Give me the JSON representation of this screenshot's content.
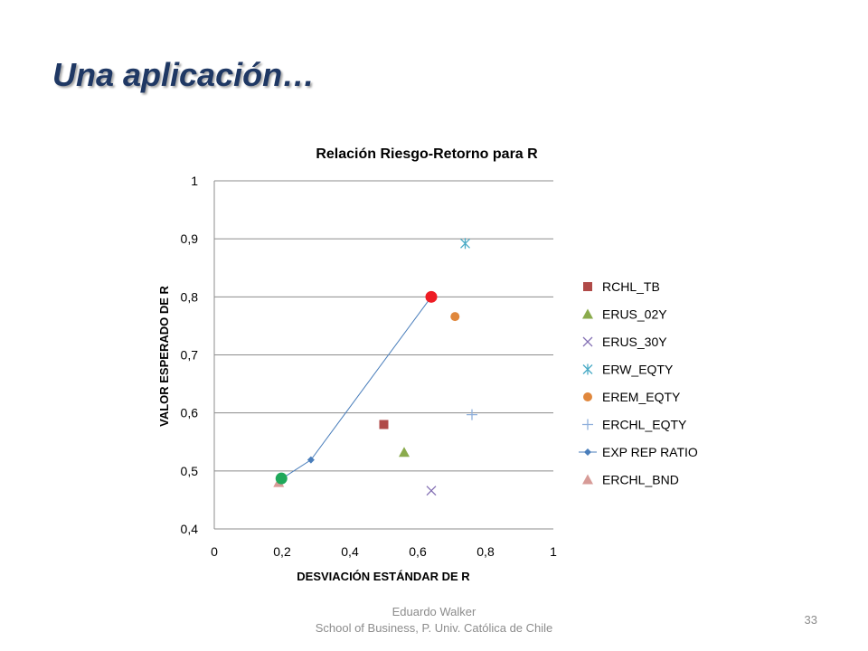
{
  "slide": {
    "title": "Una aplicación…",
    "footer_line1": "Eduardo Walker",
    "footer_line2": "School of Business, P. Univ. Católica de Chile",
    "page_number": "33"
  },
  "chart_data": {
    "type": "scatter",
    "title": "Relación Riesgo-Retorno para R",
    "xlabel": "DESVIACIÓN ESTÁNDAR DE R",
    "ylabel": "VALOR ESPERADO DE R",
    "xlim": [
      0,
      1
    ],
    "ylim": [
      0.4,
      1
    ],
    "x_ticks": [
      "0",
      "0,2",
      "0,4",
      "0,6",
      "0,8",
      "1"
    ],
    "y_ticks": [
      "0,4",
      "0,5",
      "0,6",
      "0,7",
      "0,8",
      "0,9",
      "1"
    ],
    "grid": "horizontal",
    "legend_position": "right",
    "series": [
      {
        "name": "RCHL_TB",
        "marker": "square",
        "color": "#b04a48",
        "points": [
          [
            0.5,
            0.58
          ]
        ]
      },
      {
        "name": "ERUS_02Y",
        "marker": "triangle",
        "color": "#8aab4c",
        "points": [
          [
            0.56,
            0.532
          ]
        ]
      },
      {
        "name": "ERUS_30Y",
        "marker": "x",
        "color": "#8470b4",
        "points": [
          [
            0.64,
            0.466
          ]
        ]
      },
      {
        "name": "ERW_EQTY",
        "marker": "star",
        "color": "#4aabc6",
        "points": [
          [
            0.74,
            0.892
          ]
        ]
      },
      {
        "name": "EREM_EQTY",
        "marker": "circle",
        "color": "#e0873c",
        "points": [
          [
            0.71,
            0.766
          ]
        ]
      },
      {
        "name": "ERCHL_EQTY",
        "marker": "plus",
        "color": "#8fb0dc",
        "points": [
          [
            0.76,
            0.597
          ]
        ]
      },
      {
        "name": "EXP REP RATIO",
        "marker": "diamond-line",
        "color": "#4a7ebb",
        "points": [
          [
            0.2,
            0.487
          ],
          [
            0.285,
            0.519
          ],
          [
            0.64,
            0.8
          ]
        ]
      },
      {
        "name": "ERCHL_BND",
        "marker": "triangle",
        "color": "#d79b97",
        "points": [
          [
            0.19,
            0.48
          ]
        ]
      }
    ],
    "highlights": [
      {
        "color": "#ee1c24",
        "points": [
          [
            0.64,
            0.8
          ]
        ]
      },
      {
        "color": "#1fa85a",
        "points": [
          [
            0.198,
            0.487
          ]
        ]
      }
    ]
  }
}
